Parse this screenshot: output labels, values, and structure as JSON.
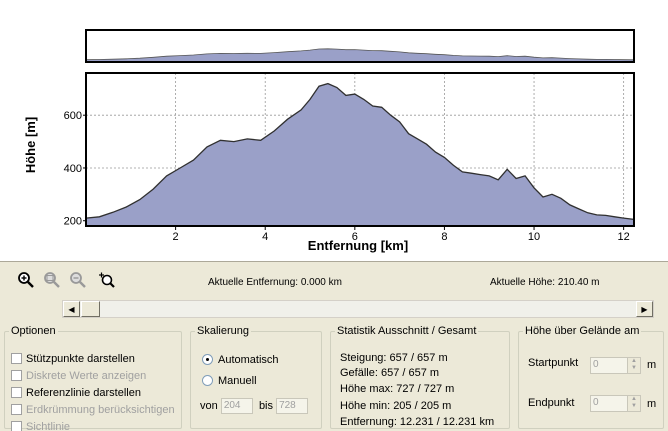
{
  "toolbar": {
    "icons": [
      "zoom-in-icon",
      "zoom-selection-icon",
      "zoom-out-icon",
      "zoom-reset-icon"
    ]
  },
  "status": {
    "distance": "Aktuelle Entfernung: 0.000 km",
    "height": "Aktuelle Höhe: 210.40 m"
  },
  "options": {
    "title": "Optionen",
    "items": [
      {
        "label": "Stützpunkte darstellen",
        "enabled": true
      },
      {
        "label": "Diskrete Werte anzeigen",
        "enabled": false
      },
      {
        "label": "Referenzlinie darstellen",
        "enabled": true
      },
      {
        "label": "Erdkrümmung berücksichtigen",
        "enabled": false
      },
      {
        "label": "Sichtlinie",
        "enabled": false
      }
    ]
  },
  "scaling": {
    "title": "Skalierung",
    "auto_label": "Automatisch",
    "manual_label": "Manuell",
    "from_label": "von",
    "from_value": "204",
    "to_label": "bis",
    "to_value": "728"
  },
  "statistics": {
    "title": "Statistik  Ausschnitt / Gesamt",
    "rows": [
      "Steigung: 657 / 657 m",
      "Gefälle: 657 / 657 m",
      "Höhe max: 727 / 727 m",
      "Höhe min: 205 / 205 m",
      "Entfernung: 12.231 / 12.231 km"
    ]
  },
  "terrain": {
    "title": "Höhe über Gelände am",
    "start_label": "Startpunkt",
    "start_value": "0",
    "start_unit": "m",
    "end_label": "Endpunkt",
    "end_value": "0",
    "end_unit": "m"
  },
  "chart_data": {
    "type": "area",
    "title": "",
    "xlabel": "Entfernung [km]",
    "ylabel": "Höhe [m]",
    "xlim": [
      0,
      12.231
    ],
    "ylim": [
      200,
      727
    ],
    "x_ticks": [
      2,
      4,
      6,
      8,
      10,
      12
    ],
    "y_ticks": [
      200,
      400,
      600
    ],
    "fill_color": "#9aa0c8",
    "line_color": "#303030",
    "grid": true,
    "series": [
      {
        "x": [
          0,
          0.3,
          0.6,
          0.9,
          1.2,
          1.5,
          1.8,
          2.1,
          2.4,
          2.7,
          3.0,
          3.3,
          3.6,
          3.9,
          4.2,
          4.5,
          4.8,
          5.0,
          5.2,
          5.4,
          5.6,
          5.8,
          6.0,
          6.2,
          6.4,
          6.6,
          6.8,
          7.0,
          7.2,
          7.4,
          7.6,
          7.8,
          8.0,
          8.2,
          8.4,
          8.6,
          8.8,
          9.0,
          9.2,
          9.4,
          9.6,
          9.8,
          10.0,
          10.2,
          10.4,
          10.6,
          10.8,
          11.0,
          11.2,
          11.4,
          11.6,
          11.8,
          12.0,
          12.231
        ],
        "y": [
          210,
          215,
          232,
          252,
          280,
          320,
          370,
          400,
          430,
          480,
          505,
          500,
          510,
          505,
          540,
          585,
          620,
          660,
          710,
          720,
          705,
          675,
          680,
          660,
          635,
          630,
          600,
          575,
          530,
          510,
          490,
          460,
          440,
          410,
          385,
          380,
          375,
          370,
          355,
          395,
          360,
          370,
          325,
          290,
          300,
          285,
          260,
          245,
          230,
          222,
          220,
          215,
          210,
          205
        ]
      }
    ]
  }
}
